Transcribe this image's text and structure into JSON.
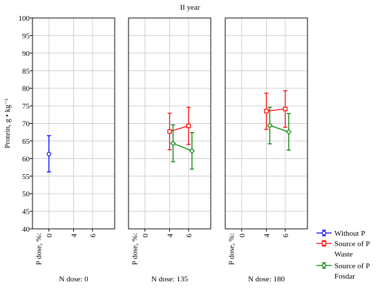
{
  "chart_data": {
    "type": "line",
    "title": "II year",
    "ylabel": "Protein, g • kg⁻¹",
    "ylim": [
      40,
      100
    ],
    "yticks": [
      40,
      45,
      50,
      55,
      60,
      65,
      70,
      75,
      80,
      85,
      90,
      95,
      100
    ],
    "xlabel": "P dose, %:",
    "x_categories": [
      "0",
      "4",
      "6"
    ],
    "grid": true,
    "panels": [
      {
        "label": "N dose: 0",
        "series": [
          {
            "name": "Without P",
            "x": [
              "0"
            ],
            "y": [
              61.3
            ],
            "lower": [
              56.2
            ],
            "upper": [
              66.5
            ]
          }
        ]
      },
      {
        "label": "N dose: 135",
        "series": [
          {
            "name": "Source of P Waste",
            "x": [
              "4",
              "6"
            ],
            "y": [
              67.7,
              69.3
            ],
            "lower": [
              62.5,
              64.0
            ],
            "upper": [
              72.9,
              74.6
            ]
          },
          {
            "name": "Source of P Fosdar",
            "x": [
              "4",
              "6"
            ],
            "y": [
              64.3,
              62.2
            ],
            "lower": [
              59.1,
              57.0
            ],
            "upper": [
              69.6,
              67.4
            ]
          }
        ]
      },
      {
        "label": "N dose: 180",
        "series": [
          {
            "name": "Source of P Waste",
            "x": [
              "4",
              "6"
            ],
            "y": [
              73.5,
              74.1
            ],
            "lower": [
              68.3,
              68.9
            ],
            "upper": [
              78.6,
              79.3
            ]
          },
          {
            "name": "Source of P Fosdar",
            "x": [
              "4",
              "6"
            ],
            "y": [
              69.4,
              67.6
            ],
            "lower": [
              64.2,
              62.4
            ],
            "upper": [
              74.6,
              72.8
            ]
          }
        ]
      }
    ],
    "legend": {
      "position": "bottom-right",
      "entries": [
        {
          "line1": "Without P",
          "line2": "",
          "color": "#0000ff",
          "marker": "circle"
        },
        {
          "line1": "Source of P",
          "line2": "Waste",
          "color": "#ff0000",
          "marker": "square"
        },
        {
          "line1": "Source of P",
          "line2": "Fosdar",
          "color": "#008000",
          "marker": "diamond"
        }
      ]
    },
    "series_styles": {
      "Without P": {
        "color": "#0000ff",
        "marker": "circle"
      },
      "Source of P Waste": {
        "color": "#ff0000",
        "marker": "square"
      },
      "Source of P Fosdar": {
        "color": "#008000",
        "marker": "diamond"
      }
    }
  }
}
